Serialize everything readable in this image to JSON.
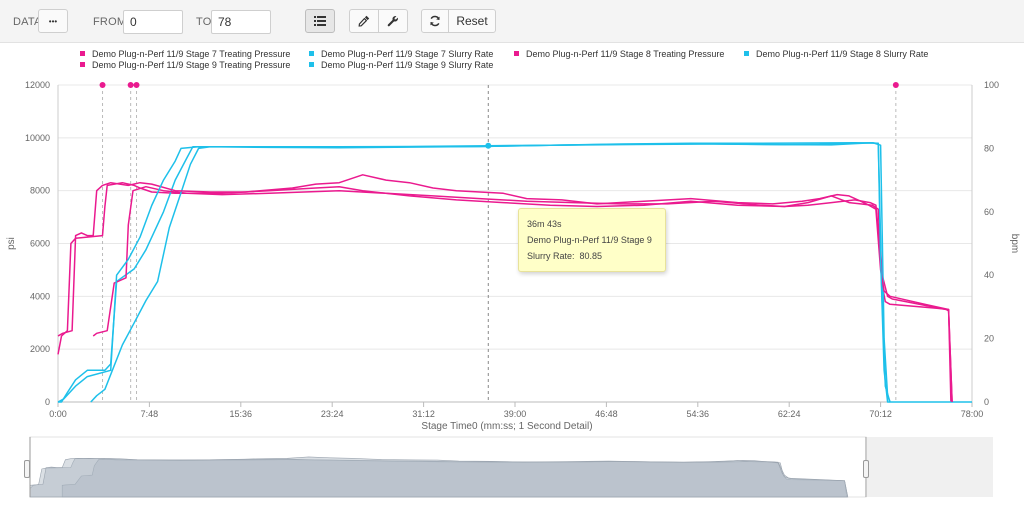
{
  "toolbar": {
    "data_label": "DATA",
    "data_button": "•••",
    "from_label": "FROM",
    "from_value": "0",
    "to_label": "TO",
    "to_value": "78",
    "list_icon": "list-icon",
    "picker_icon": "eyedropper-icon",
    "wrench_icon": "wrench-icon",
    "refresh_icon": "refresh-icon",
    "reset_label": "Reset"
  },
  "tooltip": {
    "time": "36m 43s",
    "series": "Demo Plug-n-Perf 11/9 Stage 9",
    "label": "Slurry Rate:",
    "value": "80.85"
  },
  "chart_data": {
    "type": "line",
    "xlabel": "Stage Time0 (mm:ss; 1 Second Detail)",
    "ylabel": "psi",
    "y2label": "bpm",
    "xlim": [
      0,
      78
    ],
    "ylim": [
      0,
      12000
    ],
    "y2lim": [
      0,
      100
    ],
    "x_ticks": [
      "0:00",
      "7:48",
      "15:36",
      "23:24",
      "31:12",
      "39:00",
      "46:48",
      "54:36",
      "62:24",
      "70:12",
      "78:00"
    ],
    "y_ticks": [
      "0",
      "2000",
      "4000",
      "6000",
      "8000",
      "10000",
      "12000"
    ],
    "y2_ticks": [
      "0",
      "20",
      "40",
      "60",
      "80",
      "100"
    ],
    "grid": true,
    "legend_position": "top",
    "colors": {
      "pressure": "#ea1a8f",
      "rate": "#1ec0ea"
    },
    "cursor_x": 36.72,
    "markers": [
      {
        "x": 3.8,
        "y": 12000,
        "series": "pressure"
      },
      {
        "x": 6.2,
        "y": 12000,
        "series": "pressure"
      },
      {
        "x": 6.7,
        "y": 12000,
        "series": "pressure"
      },
      {
        "x": 71.5,
        "y": 12000,
        "series": "pressure"
      },
      {
        "x": 36.72,
        "y2": 80.85,
        "series": "rate"
      }
    ],
    "series": [
      {
        "name": "Demo Plug-n-Perf 11/9 Stage 7 Treating Pressure",
        "axis": "left",
        "color": "#ea1a8f",
        "points": [
          [
            0,
            1800
          ],
          [
            0.3,
            2500
          ],
          [
            0.8,
            2700
          ],
          [
            1.1,
            6000
          ],
          [
            1.5,
            6200
          ],
          [
            3.8,
            6300
          ],
          [
            4.0,
            7400
          ],
          [
            4.2,
            8200
          ],
          [
            5.5,
            8300
          ],
          [
            6.5,
            8200
          ],
          [
            7.0,
            8100
          ],
          [
            8,
            7950
          ],
          [
            10,
            7900
          ],
          [
            14,
            7900
          ],
          [
            18,
            8000
          ],
          [
            22,
            8100
          ],
          [
            24,
            8150
          ],
          [
            26,
            8000
          ],
          [
            30,
            7800
          ],
          [
            34,
            7650
          ],
          [
            38,
            7550
          ],
          [
            42,
            7450
          ],
          [
            46,
            7400
          ],
          [
            50,
            7450
          ],
          [
            54,
            7600
          ],
          [
            58,
            7450
          ],
          [
            62,
            7400
          ],
          [
            64,
            7550
          ],
          [
            66,
            7800
          ],
          [
            67.5,
            7550
          ],
          [
            68.5,
            7500
          ],
          [
            69.5,
            7450
          ],
          [
            70.0,
            7300
          ],
          [
            70.3,
            4500
          ],
          [
            70.6,
            3800
          ],
          [
            71,
            3700
          ],
          [
            75,
            3550
          ],
          [
            76,
            3500
          ],
          [
            76.2,
            0
          ]
        ]
      },
      {
        "name": "Demo Plug-n-Perf 11/9 Stage 7 Slurry Rate",
        "axis": "right",
        "color": "#1ec0ea",
        "points": [
          [
            0,
            0
          ],
          [
            0.3,
            0
          ],
          [
            0.8,
            3
          ],
          [
            1.5,
            7
          ],
          [
            2.5,
            10
          ],
          [
            4.0,
            10
          ],
          [
            4.5,
            12
          ],
          [
            5.0,
            38
          ],
          [
            6.5,
            42
          ],
          [
            7.5,
            48
          ],
          [
            9.0,
            60
          ],
          [
            10.0,
            70
          ],
          [
            11.0,
            77
          ],
          [
            11.5,
            80.5
          ],
          [
            14,
            80.5
          ],
          [
            20,
            80.5
          ],
          [
            26,
            80.4
          ],
          [
            30,
            80.5
          ],
          [
            36,
            80.6
          ],
          [
            42,
            81
          ],
          [
            48,
            81.2
          ],
          [
            56,
            81.4
          ],
          [
            62,
            81.2
          ],
          [
            66,
            81.1
          ],
          [
            68,
            81.5
          ],
          [
            69.5,
            81.8
          ],
          [
            70,
            81.5
          ],
          [
            70.3,
            35
          ],
          [
            70.6,
            5
          ],
          [
            71,
            0
          ],
          [
            78,
            0
          ]
        ]
      },
      {
        "name": "Demo Plug-n-Perf 11/9 Stage 8 Treating Pressure",
        "axis": "left",
        "color": "#ea1a8f",
        "points": [
          [
            3.0,
            2500
          ],
          [
            3.3,
            2600
          ],
          [
            4.2,
            2700
          ],
          [
            4.8,
            4500
          ],
          [
            5.3,
            4600
          ],
          [
            5.8,
            4700
          ],
          [
            6.0,
            6700
          ],
          [
            6.4,
            8000
          ],
          [
            7.5,
            8150
          ],
          [
            9,
            8000
          ],
          [
            11,
            7900
          ],
          [
            14,
            7850
          ],
          [
            18,
            7900
          ],
          [
            21,
            7950
          ],
          [
            24,
            8000
          ],
          [
            28,
            7900
          ],
          [
            32,
            7800
          ],
          [
            36,
            7700
          ],
          [
            40,
            7600
          ],
          [
            44,
            7550
          ],
          [
            48,
            7500
          ],
          [
            52,
            7500
          ],
          [
            56,
            7600
          ],
          [
            60,
            7450
          ],
          [
            62,
            7400
          ],
          [
            64,
            7450
          ],
          [
            66,
            7550
          ],
          [
            68,
            7650
          ],
          [
            69.3,
            7550
          ],
          [
            69.8,
            7450
          ],
          [
            70.4,
            4700
          ],
          [
            70.8,
            4000
          ],
          [
            71.2,
            3900
          ],
          [
            75.8,
            3500
          ],
          [
            76.0,
            3450
          ],
          [
            76.3,
            0
          ]
        ]
      },
      {
        "name": "Demo Plug-n-Perf 11/9 Stage 8 Slurry Rate",
        "axis": "right",
        "color": "#1ec0ea",
        "points": [
          [
            2.8,
            0
          ],
          [
            3.3,
            2
          ],
          [
            4.0,
            4
          ],
          [
            5.5,
            18
          ],
          [
            6.5,
            25
          ],
          [
            7.5,
            32
          ],
          [
            8.5,
            38
          ],
          [
            9.5,
            55
          ],
          [
            10.5,
            66
          ],
          [
            11.3,
            75
          ],
          [
            12,
            80
          ],
          [
            13,
            80.5
          ],
          [
            18,
            80.3
          ],
          [
            24,
            80.2
          ],
          [
            30,
            80.4
          ],
          [
            36,
            80.6
          ],
          [
            42,
            81
          ],
          [
            48,
            81.3
          ],
          [
            54,
            81.5
          ],
          [
            58,
            81.3
          ],
          [
            62,
            81.2
          ],
          [
            65,
            81.3
          ],
          [
            67,
            81.6
          ],
          [
            69.5,
            81.8
          ],
          [
            70.2,
            81
          ],
          [
            70.5,
            20
          ],
          [
            70.8,
            2
          ],
          [
            71,
            0
          ]
        ]
      },
      {
        "name": "Demo Plug-n-Perf 11/9 Stage 9 Treating Pressure",
        "axis": "left",
        "color": "#ea1a8f",
        "points": [
          [
            0,
            2500
          ],
          [
            0.4,
            2600
          ],
          [
            1.2,
            2700
          ],
          [
            1.5,
            6300
          ],
          [
            2.0,
            6400
          ],
          [
            2.5,
            6300
          ],
          [
            3.0,
            6300
          ],
          [
            3.3,
            8000
          ],
          [
            3.8,
            8200
          ],
          [
            4.5,
            8300
          ],
          [
            6,
            8200
          ],
          [
            7,
            8300
          ],
          [
            8,
            8250
          ],
          [
            10,
            8000
          ],
          [
            13,
            7950
          ],
          [
            16,
            7950
          ],
          [
            20,
            8100
          ],
          [
            22,
            8250
          ],
          [
            24,
            8300
          ],
          [
            26,
            8600
          ],
          [
            28,
            8400
          ],
          [
            30,
            8300
          ],
          [
            32,
            8100
          ],
          [
            34,
            8000
          ],
          [
            36,
            7950
          ],
          [
            38,
            7900
          ],
          [
            40,
            7700
          ],
          [
            43,
            7650
          ],
          [
            46,
            7500
          ],
          [
            50,
            7600
          ],
          [
            54,
            7700
          ],
          [
            58,
            7550
          ],
          [
            61,
            7500
          ],
          [
            63.5,
            7600
          ],
          [
            65,
            7700
          ],
          [
            66.5,
            7850
          ],
          [
            67.5,
            7800
          ],
          [
            68.5,
            7600
          ],
          [
            69.2,
            7450
          ],
          [
            69.8,
            7300
          ],
          [
            70.2,
            5000
          ],
          [
            70.5,
            4200
          ],
          [
            71,
            4000
          ],
          [
            74,
            3700
          ],
          [
            76,
            3500
          ],
          [
            76.3,
            0
          ]
        ]
      },
      {
        "name": "Demo Plug-n-Perf 11/9 Stage 9 Slurry Rate",
        "axis": "right",
        "color": "#1ec0ea",
        "points": [
          [
            0,
            0
          ],
          [
            0.5,
            1
          ],
          [
            1.5,
            5
          ],
          [
            2.5,
            8
          ],
          [
            4.5,
            10
          ],
          [
            5.0,
            40
          ],
          [
            6.0,
            45
          ],
          [
            7.0,
            52
          ],
          [
            8.0,
            62
          ],
          [
            9.0,
            70
          ],
          [
            10.0,
            76
          ],
          [
            10.5,
            80
          ],
          [
            12,
            80.5
          ],
          [
            18,
            80.5
          ],
          [
            24,
            80.5
          ],
          [
            30,
            80.6
          ],
          [
            36.72,
            80.85
          ],
          [
            42,
            81
          ],
          [
            48,
            81.4
          ],
          [
            54,
            81.6
          ],
          [
            60,
            81.6
          ],
          [
            64,
            81.7
          ],
          [
            68,
            81.8
          ],
          [
            70,
            81.6
          ],
          [
            70.2,
            45
          ],
          [
            70.5,
            10
          ],
          [
            70.8,
            0
          ],
          [
            71,
            0
          ]
        ]
      }
    ]
  }
}
